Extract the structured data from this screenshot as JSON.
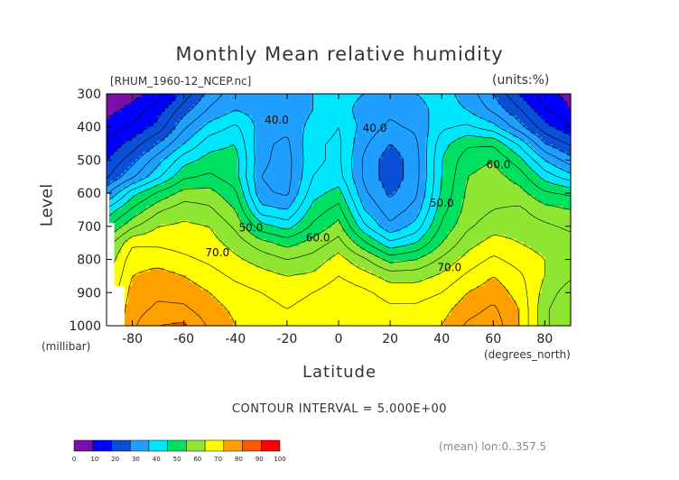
{
  "chart_data": {
    "type": "contour",
    "title": "Monthly Mean relative humidity",
    "file_label": "[RHUM_1960-12_NCEP.nc]",
    "units": "(units:%)",
    "ylabel": "Level",
    "y_unit": "(millibar)",
    "xlabel": "Latitude",
    "x_unit": "(degrees_north)",
    "contour_interval": "CONTOUR INTERVAL = 5.000E+00",
    "averaging_note": "(mean) lon:0..357.5",
    "xlim": [
      -90,
      90
    ],
    "ylim": [
      300,
      1000
    ],
    "x_ticks": [
      -80,
      -60,
      -40,
      -20,
      0,
      20,
      40,
      60,
      80
    ],
    "x_tick_labels": [
      "-80",
      "-60",
      "-40",
      "-20",
      "0",
      "20",
      "40",
      "60",
      "80"
    ],
    "y_ticks": [
      300,
      400,
      500,
      600,
      700,
      800,
      900,
      1000
    ],
    "y_tick_labels": [
      "300",
      "400",
      "500",
      "600",
      "700",
      "800",
      "900",
      "1000"
    ],
    "color_levels": [
      0,
      10,
      20,
      30,
      40,
      50,
      60,
      70,
      80,
      90,
      100
    ],
    "colorbar_labels": [
      "0",
      "10",
      "20",
      "30",
      "40",
      "50",
      "60",
      "70",
      "80",
      "90",
      "100"
    ],
    "colors": [
      "#7b0fa8",
      "#0000ff",
      "#0a4fd8",
      "#1f9fff",
      "#00e6ff",
      "#00e060",
      "#8fe632",
      "#ffff00",
      "#ffa000",
      "#ff5a00",
      "#ff0000"
    ],
    "contour_labels": [
      {
        "text": "40.0",
        "lat": -24,
        "level": 390
      },
      {
        "text": "40.0",
        "lat": 14,
        "level": 415
      },
      {
        "text": "50.0",
        "lat": -34,
        "level": 715
      },
      {
        "text": "50.0",
        "lat": 40,
        "level": 640
      },
      {
        "text": "60.0",
        "lat": -8,
        "level": 745
      },
      {
        "text": "60.0",
        "lat": 62,
        "level": 525
      },
      {
        "text": "70.0",
        "lat": -47,
        "level": 790
      },
      {
        "text": "70.0",
        "lat": 43,
        "level": 835
      }
    ],
    "grid_lat": [
      -90,
      -80,
      -70,
      -60,
      -50,
      -40,
      -30,
      -20,
      -10,
      0,
      10,
      20,
      30,
      40,
      50,
      60,
      70,
      80,
      90
    ],
    "grid_level": [
      300,
      350,
      400,
      450,
      500,
      550,
      600,
      650,
      700,
      750,
      800,
      850,
      900,
      950,
      1000
    ],
    "rh_values": [
      [
        5,
        8,
        12,
        22,
        32,
        38,
        40,
        38,
        40,
        42,
        40,
        38,
        40,
        42,
        38,
        30,
        20,
        12,
        8
      ],
      [
        8,
        12,
        18,
        28,
        36,
        40,
        38,
        36,
        40,
        42,
        38,
        36,
        38,
        42,
        40,
        34,
        26,
        16,
        10
      ],
      [
        12,
        16,
        22,
        34,
        42,
        46,
        38,
        36,
        42,
        45,
        38,
        34,
        36,
        44,
        46,
        42,
        32,
        22,
        16
      ],
      [
        16,
        22,
        30,
        40,
        48,
        50,
        36,
        34,
        44,
        46,
        36,
        30,
        34,
        48,
        54,
        54,
        44,
        30,
        24
      ],
      [
        20,
        28,
        38,
        48,
        52,
        52,
        36,
        33,
        44,
        46,
        34,
        27,
        33,
        50,
        58,
        60,
        52,
        40,
        32
      ],
      [
        24,
        34,
        44,
        54,
        56,
        52,
        35,
        33,
        45,
        47,
        34,
        27,
        33,
        50,
        60,
        62,
        58,
        48,
        42
      ],
      [
        34,
        48,
        56,
        62,
        62,
        56,
        36,
        34,
        48,
        52,
        36,
        29,
        34,
        51,
        61,
        63,
        62,
        56,
        54
      ],
      [
        46,
        56,
        64,
        68,
        66,
        60,
        42,
        40,
        52,
        57,
        40,
        32,
        37,
        53,
        62,
        65,
        66,
        62,
        60
      ],
      [
        54,
        64,
        70,
        71,
        70,
        64,
        52,
        48,
        56,
        62,
        46,
        36,
        42,
        56,
        64,
        68,
        68,
        66,
        64
      ],
      [
        62,
        74,
        74,
        73,
        72,
        68,
        62,
        58,
        62,
        67,
        56,
        46,
        50,
        60,
        68,
        72,
        70,
        68,
        67
      ],
      [
        66,
        78,
        78,
        76,
        74,
        71,
        68,
        65,
        67,
        72,
        66,
        58,
        60,
        66,
        72,
        76,
        73,
        70,
        68
      ],
      [
        68,
        80,
        82,
        80,
        77,
        74,
        72,
        70,
        71,
        75,
        72,
        68,
        68,
        71,
        76,
        80,
        76,
        70,
        66
      ],
      [
        70,
        82,
        84,
        83,
        80,
        77,
        75,
        73,
        75,
        78,
        76,
        73,
        73,
        75,
        80,
        83,
        78,
        68,
        62
      ],
      [
        72,
        83,
        86,
        86,
        82,
        79,
        77,
        75,
        77,
        79,
        78,
        76,
        76,
        78,
        83,
        86,
        80,
        66,
        60
      ],
      [
        74,
        84,
        90,
        91,
        84,
        80,
        78,
        77,
        78,
        80,
        79,
        78,
        78,
        80,
        86,
        88,
        80,
        66,
        60
      ]
    ]
  }
}
